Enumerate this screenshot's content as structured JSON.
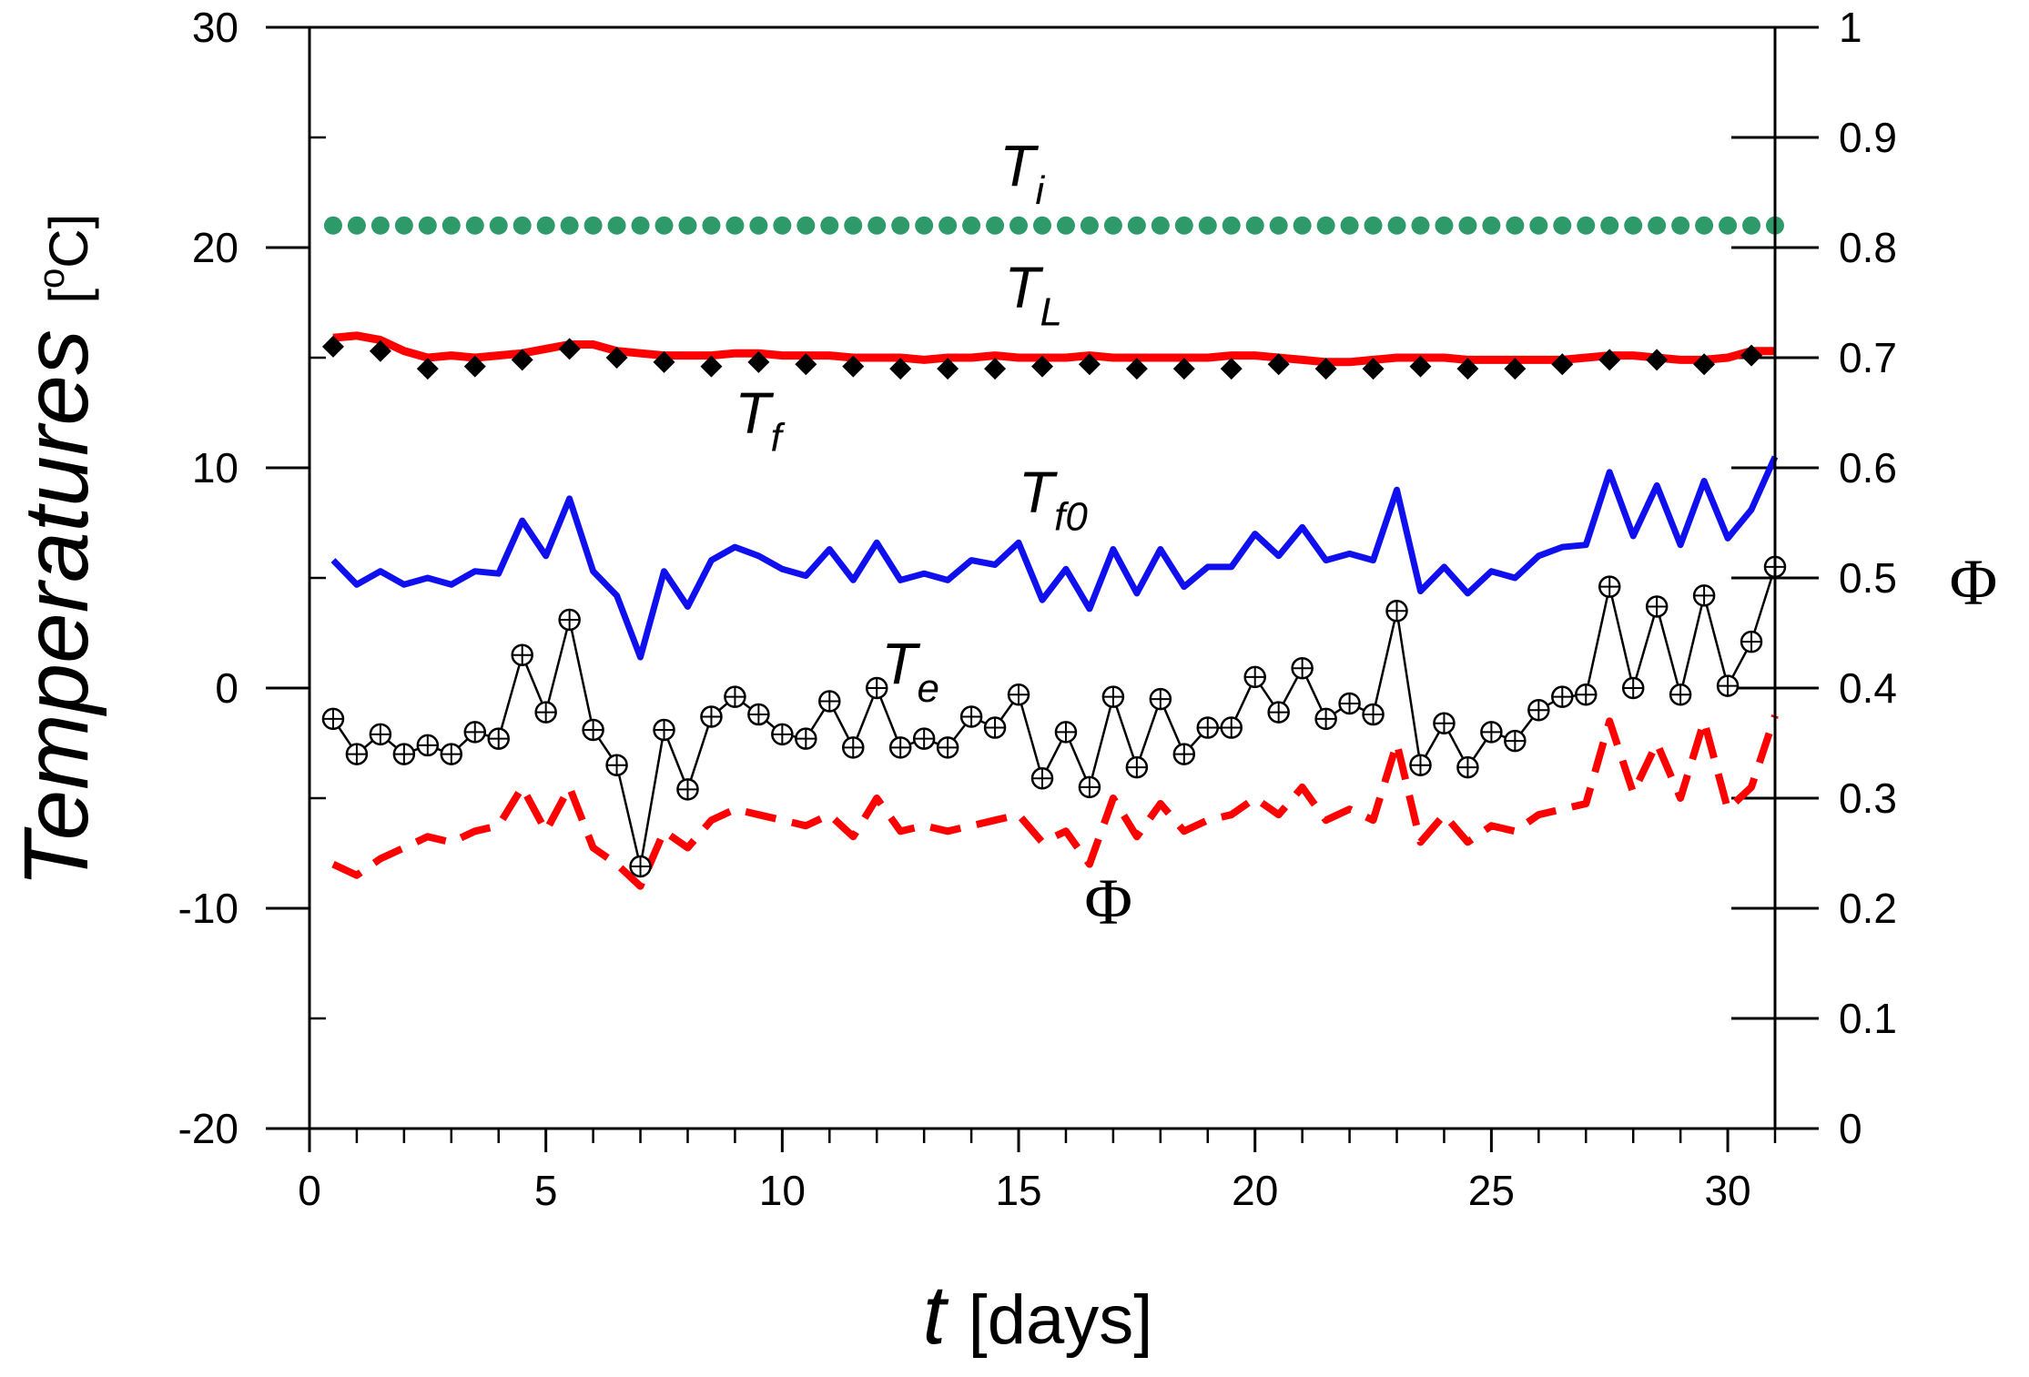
{
  "chart_data": {
    "type": "line",
    "x_axis": {
      "label_var": "t",
      "label_unit": "[days]",
      "range": [
        0,
        31
      ],
      "ticks": [
        0,
        5,
        10,
        15,
        20,
        25,
        30
      ],
      "tick_labels": [
        "0",
        "5",
        "10",
        "15",
        "20",
        "25",
        "30"
      ],
      "minor_step": 1
    },
    "y_left": {
      "label": "Temperatures",
      "unit": "[oC]",
      "unit_superscript": "o",
      "unit_main": "C",
      "range": [
        -20,
        30
      ],
      "ticks": [
        -20,
        -10,
        0,
        10,
        20,
        30
      ],
      "tick_labels": [
        "-20",
        "-10",
        "0",
        "10",
        "20",
        "30"
      ],
      "minor_step": 5
    },
    "y_right": {
      "label": "Φ",
      "range": [
        0,
        1
      ],
      "ticks": [
        0,
        0.1,
        0.2,
        0.3,
        0.4,
        0.5,
        0.6,
        0.7,
        0.8,
        0.9,
        1
      ],
      "tick_labels": [
        "0",
        "0.1",
        "0.2",
        "0.3",
        "0.4",
        "0.5",
        "0.6",
        "0.7",
        "0.8",
        "0.9",
        "1"
      ]
    },
    "series": [
      {
        "name": "Ti",
        "label_main": "T",
        "label_sub": "i",
        "axis": "left",
        "color": "#2e9a6a",
        "style": "dots",
        "x": [
          0.5,
          1,
          1.5,
          2,
          2.5,
          3,
          3.5,
          4,
          4.5,
          5,
          5.5,
          6,
          6.5,
          7,
          7.5,
          8,
          8.5,
          9,
          9.5,
          10,
          10.5,
          11,
          11.5,
          12,
          12.5,
          13,
          13.5,
          14,
          14.5,
          15,
          15.5,
          16,
          16.5,
          17,
          17.5,
          18,
          18.5,
          19,
          19.5,
          20,
          20.5,
          21,
          21.5,
          22,
          22.5,
          23,
          23.5,
          24,
          24.5,
          25,
          25.5,
          26,
          26.5,
          27,
          27.5,
          28,
          28.5,
          29,
          29.5,
          30,
          30.5,
          31
        ],
        "y": [
          21,
          21,
          21,
          21,
          21,
          21,
          21,
          21,
          21,
          21,
          21,
          21,
          21,
          21,
          21,
          21,
          21,
          21,
          21,
          21,
          21,
          21,
          21,
          21,
          21,
          21,
          21,
          21,
          21,
          21,
          21,
          21,
          21,
          21,
          21,
          21,
          21,
          21,
          21,
          21,
          21,
          21,
          21,
          21,
          21,
          21,
          21,
          21,
          21,
          21,
          21,
          21,
          21,
          21,
          21,
          21,
          21,
          21,
          21,
          21,
          21,
          21
        ]
      },
      {
        "name": "TL",
        "label_main": "T",
        "label_sub": "L",
        "axis": "left",
        "color": "#ff0000",
        "style": "line",
        "x": [
          0.5,
          1,
          1.5,
          2,
          2.5,
          3,
          3.5,
          4,
          4.5,
          5,
          5.5,
          6,
          6.5,
          7,
          7.5,
          8,
          8.5,
          9,
          9.5,
          10,
          10.5,
          11,
          11.5,
          12,
          12.5,
          13,
          13.5,
          14,
          14.5,
          15,
          15.5,
          16,
          16.5,
          17,
          17.5,
          18,
          18.5,
          19,
          19.5,
          20,
          20.5,
          21,
          21.5,
          22,
          22.5,
          23,
          23.5,
          24,
          24.5,
          25,
          25.5,
          26,
          26.5,
          27,
          27.5,
          28,
          28.5,
          29,
          29.5,
          30,
          30.5,
          31
        ],
        "y": [
          15.9,
          16.0,
          15.8,
          15.3,
          15.0,
          15.1,
          15.0,
          15.1,
          15.2,
          15.4,
          15.6,
          15.6,
          15.3,
          15.2,
          15.1,
          15.1,
          15.1,
          15.2,
          15.2,
          15.1,
          15.1,
          15.1,
          15.0,
          15.0,
          15.0,
          14.9,
          15.0,
          15.0,
          15.1,
          15.0,
          15.0,
          15.0,
          15.1,
          15.0,
          15.0,
          15.0,
          15.0,
          15.0,
          15.1,
          15.1,
          15.0,
          14.9,
          14.8,
          14.8,
          14.9,
          15.0,
          15.0,
          15.0,
          14.9,
          14.9,
          14.9,
          14.9,
          14.9,
          15.0,
          15.1,
          15.1,
          15.0,
          14.9,
          14.9,
          15.0,
          15.3,
          15.3
        ]
      },
      {
        "name": "Tf",
        "label_main": "T",
        "label_sub": "f",
        "axis": "left",
        "color": "#000000",
        "style": "diamonds",
        "x": [
          0.5,
          1.5,
          2.5,
          3.5,
          4.5,
          5.5,
          6.5,
          7.5,
          8.5,
          9.5,
          10.5,
          11.5,
          12.5,
          13.5,
          14.5,
          15.5,
          16.5,
          17.5,
          18.5,
          19.5,
          20.5,
          21.5,
          22.5,
          23.5,
          24.5,
          25.5,
          26.5,
          27.5,
          28.5,
          29.5,
          30.5
        ],
        "y": [
          15.5,
          15.3,
          14.5,
          14.6,
          14.9,
          15.4,
          15.0,
          14.8,
          14.6,
          14.8,
          14.7,
          14.6,
          14.5,
          14.5,
          14.5,
          14.6,
          14.7,
          14.5,
          14.5,
          14.5,
          14.7,
          14.5,
          14.5,
          14.6,
          14.5,
          14.5,
          14.7,
          14.9,
          14.9,
          14.7,
          15.1
        ]
      },
      {
        "name": "Tf0",
        "label_main": "T",
        "label_sub": "f0",
        "axis": "left",
        "color": "#1010ee",
        "style": "line",
        "x": [
          0.5,
          1,
          1.5,
          2,
          2.5,
          3,
          3.5,
          4,
          4.5,
          5,
          5.5,
          6,
          6.5,
          7,
          7.5,
          8,
          8.5,
          9,
          9.5,
          10,
          10.5,
          11,
          11.5,
          12,
          12.5,
          13,
          13.5,
          14,
          14.5,
          15,
          15.5,
          16,
          16.5,
          17,
          17.5,
          18,
          18.5,
          19,
          19.5,
          20,
          20.5,
          21,
          21.5,
          22,
          22.5,
          23,
          23.5,
          24,
          24.5,
          25,
          25.5,
          26,
          26.5,
          27,
          27.5,
          28,
          28.5,
          29,
          29.5,
          30,
          30.5,
          31
        ],
        "y": [
          5.8,
          4.7,
          5.3,
          4.7,
          5.0,
          4.7,
          5.3,
          5.2,
          7.6,
          6.0,
          8.6,
          5.3,
          4.2,
          1.4,
          5.3,
          3.7,
          5.8,
          6.4,
          6.0,
          5.4,
          5.1,
          6.3,
          4.9,
          6.6,
          4.9,
          5.2,
          4.9,
          5.8,
          5.6,
          6.6,
          4.0,
          5.4,
          3.6,
          6.3,
          4.3,
          6.3,
          4.6,
          5.5,
          5.5,
          7.0,
          6.0,
          7.3,
          5.8,
          6.1,
          5.8,
          9.0,
          4.4,
          5.5,
          4.3,
          5.3,
          5.0,
          6.0,
          6.4,
          6.5,
          9.8,
          6.9,
          9.2,
          6.5,
          9.4,
          6.8,
          8.1,
          10.5
        ]
      },
      {
        "name": "Te",
        "label_main": "T",
        "label_sub": "e",
        "axis": "left",
        "color": "#000000",
        "style": "line-circles",
        "x": [
          0.5,
          1,
          1.5,
          2,
          2.5,
          3,
          3.5,
          4,
          4.5,
          5,
          5.5,
          6,
          6.5,
          7,
          7.5,
          8,
          8.5,
          9,
          9.5,
          10,
          10.5,
          11,
          11.5,
          12,
          12.5,
          13,
          13.5,
          14,
          14.5,
          15,
          15.5,
          16,
          16.5,
          17,
          17.5,
          18,
          18.5,
          19,
          19.5,
          20,
          20.5,
          21,
          21.5,
          22,
          22.5,
          23,
          23.5,
          24,
          24.5,
          25,
          25.5,
          26,
          26.5,
          27,
          27.5,
          28,
          28.5,
          29,
          29.5,
          30,
          30.5,
          31
        ],
        "y": [
          -1.4,
          -3.0,
          -2.1,
          -3.0,
          -2.6,
          -3.0,
          -2.0,
          -2.3,
          1.5,
          -1.1,
          3.1,
          -1.9,
          -3.5,
          -8.1,
          -1.9,
          -4.6,
          -1.3,
          -0.4,
          -1.2,
          -2.1,
          -2.3,
          -0.6,
          -2.7,
          0.0,
          -2.7,
          -2.3,
          -2.7,
          -1.3,
          -1.8,
          -0.3,
          -4.1,
          -2.0,
          -4.5,
          -0.4,
          -3.6,
          -0.5,
          -3.0,
          -1.8,
          -1.8,
          0.5,
          -1.1,
          0.9,
          -1.4,
          -0.7,
          -1.2,
          3.5,
          -3.5,
          -1.6,
          -3.6,
          -2.0,
          -2.4,
          -1.0,
          -0.4,
          -0.3,
          4.6,
          0.0,
          3.7,
          -0.3,
          4.2,
          0.1,
          2.1,
          5.5
        ]
      },
      {
        "name": "Φ",
        "label_main": "Φ",
        "axis": "right",
        "color": "#ff0000",
        "style": "dashed",
        "x": [
          0.5,
          1,
          1.5,
          2,
          2.5,
          3,
          3.5,
          4,
          4.5,
          5,
          5.5,
          6,
          6.5,
          7,
          7.5,
          8,
          8.5,
          9,
          9.5,
          10,
          10.5,
          11,
          11.5,
          12,
          12.5,
          13,
          13.5,
          14,
          14.5,
          15,
          15.5,
          16,
          16.5,
          17,
          17.5,
          18,
          18.5,
          19,
          19.5,
          20,
          20.5,
          21,
          21.5,
          22,
          22.5,
          23,
          23.5,
          24,
          24.5,
          25,
          25.5,
          26,
          26.5,
          27,
          27.5,
          28,
          28.5,
          29,
          29.5,
          30,
          30.5,
          31
        ],
        "y": [
          0.24,
          0.23,
          0.245,
          0.255,
          0.265,
          0.26,
          0.27,
          0.275,
          0.31,
          0.27,
          0.31,
          0.255,
          0.24,
          0.22,
          0.27,
          0.255,
          0.28,
          0.29,
          0.285,
          0.28,
          0.275,
          0.285,
          0.265,
          0.3,
          0.27,
          0.275,
          0.27,
          0.275,
          0.28,
          0.285,
          0.26,
          0.27,
          0.24,
          0.3,
          0.265,
          0.295,
          0.27,
          0.28,
          0.285,
          0.3,
          0.285,
          0.31,
          0.28,
          0.29,
          0.28,
          0.35,
          0.26,
          0.285,
          0.26,
          0.275,
          0.27,
          0.285,
          0.29,
          0.295,
          0.37,
          0.305,
          0.35,
          0.3,
          0.37,
          0.29,
          0.31,
          0.375
        ]
      }
    ],
    "annotations": [
      {
        "series": "Ti",
        "main": "T",
        "sub": "i",
        "at_x": 14.6,
        "at_y": 22.8
      },
      {
        "series": "TL",
        "main": "T",
        "sub": "L",
        "at_x": 14.7,
        "at_y": 17.3
      },
      {
        "series": "Tf",
        "main": "T",
        "sub": "f",
        "at_x": 9.0,
        "at_y": 11.6
      },
      {
        "series": "Tf0",
        "main": "T",
        "sub": "f0",
        "at_x": 15.0,
        "at_y": 8.0
      },
      {
        "series": "Te",
        "main": "T",
        "sub": "e",
        "at_x": 12.1,
        "at_y": 0.2
      },
      {
        "series": "Φ",
        "main": "Φ",
        "at_x": 16.9,
        "at_y": -10.7
      }
    ]
  }
}
